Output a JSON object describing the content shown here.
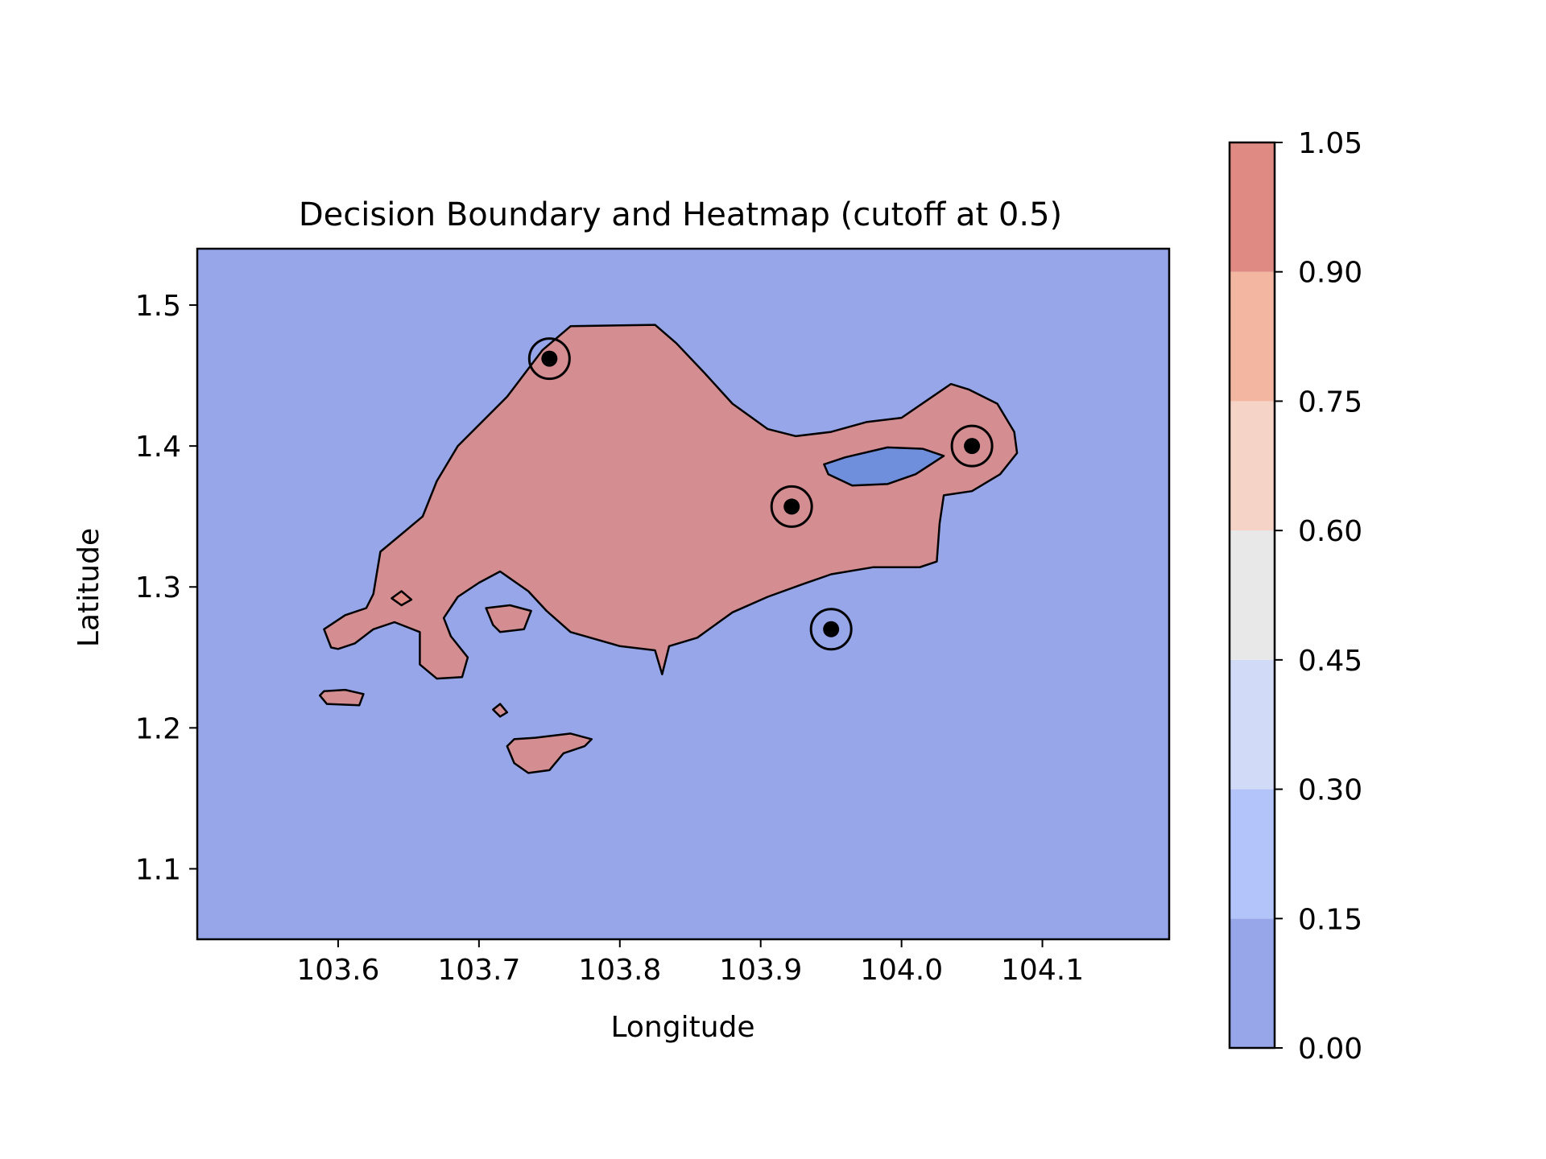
{
  "chart_data": {
    "type": "heatmap",
    "title": "Decision Boundary and Heatmap (cutoff at 0.5)",
    "xlabel": "Longitude",
    "ylabel": "Latitude",
    "xlim": [
      103.5,
      104.19
    ],
    "ylim": [
      1.05,
      1.54
    ],
    "xticks": [
      103.6,
      103.7,
      103.8,
      103.9,
      104.0,
      104.1
    ],
    "xtick_labels": [
      "103.6",
      "103.7",
      "103.8",
      "103.9",
      "104.0",
      "104.1"
    ],
    "yticks": [
      1.1,
      1.2,
      1.3,
      1.4,
      1.5
    ],
    "ytick_labels": [
      "1.1",
      "1.2",
      "1.3",
      "1.4",
      "1.5"
    ],
    "decision_cutoff": 0.5,
    "colormap": "coolwarm",
    "background_level": 0.0,
    "colorbar": {
      "levels": [
        0.0,
        0.15,
        0.3,
        0.45,
        0.6,
        0.75,
        0.9,
        1.05
      ],
      "tick_labels": [
        "0.00",
        "0.15",
        "0.30",
        "0.45",
        "0.60",
        "0.75",
        "0.90",
        "1.05"
      ],
      "colors": [
        "#96a6e8",
        "#b2c4fa",
        "#d1dbf8",
        "#e8e8e8",
        "#f5d3c6",
        "#f2b6a1",
        "#df8a83"
      ]
    },
    "points": [
      {
        "x": 103.75,
        "y": 1.462
      },
      {
        "x": 103.922,
        "y": 1.357
      },
      {
        "x": 104.05,
        "y": 1.4
      },
      {
        "x": 103.95,
        "y": 1.27
      }
    ],
    "regions": [
      {
        "level": 0.97,
        "boundary": [
          [
            103.595,
            1.257
          ],
          [
            103.59,
            1.27
          ],
          [
            103.605,
            1.28
          ],
          [
            103.62,
            1.285
          ],
          [
            103.625,
            1.295
          ],
          [
            103.63,
            1.325
          ],
          [
            103.66,
            1.35
          ],
          [
            103.67,
            1.375
          ],
          [
            103.685,
            1.4
          ],
          [
            103.72,
            1.435
          ],
          [
            103.745,
            1.468
          ],
          [
            103.765,
            1.485
          ],
          [
            103.825,
            1.486
          ],
          [
            103.84,
            1.473
          ],
          [
            103.86,
            1.452
          ],
          [
            103.88,
            1.43
          ],
          [
            103.905,
            1.412
          ],
          [
            103.925,
            1.407
          ],
          [
            103.95,
            1.41
          ],
          [
            103.975,
            1.417
          ],
          [
            104.0,
            1.42
          ],
          [
            104.035,
            1.444
          ],
          [
            104.048,
            1.44
          ],
          [
            104.068,
            1.43
          ],
          [
            104.08,
            1.41
          ],
          [
            104.082,
            1.395
          ],
          [
            104.07,
            1.38
          ],
          [
            104.05,
            1.368
          ],
          [
            104.03,
            1.365
          ],
          [
            104.027,
            1.345
          ],
          [
            104.025,
            1.318
          ],
          [
            104.013,
            1.314
          ],
          [
            103.98,
            1.314
          ],
          [
            103.95,
            1.309
          ],
          [
            103.93,
            1.302
          ],
          [
            103.905,
            1.293
          ],
          [
            103.88,
            1.282
          ],
          [
            103.855,
            1.264
          ],
          [
            103.835,
            1.258
          ],
          [
            103.83,
            1.238
          ],
          [
            103.825,
            1.255
          ],
          [
            103.8,
            1.258
          ],
          [
            103.765,
            1.268
          ],
          [
            103.748,
            1.283
          ],
          [
            103.735,
            1.297
          ],
          [
            103.715,
            1.311
          ],
          [
            103.7,
            1.303
          ],
          [
            103.685,
            1.293
          ],
          [
            103.675,
            1.278
          ],
          [
            103.68,
            1.265
          ],
          [
            103.692,
            1.25
          ],
          [
            103.688,
            1.236
          ],
          [
            103.67,
            1.235
          ],
          [
            103.658,
            1.245
          ],
          [
            103.658,
            1.268
          ],
          [
            103.64,
            1.275
          ],
          [
            103.625,
            1.27
          ],
          [
            103.612,
            1.26
          ],
          [
            103.6,
            1.256
          ]
        ]
      },
      {
        "level": 0.97,
        "boundary": [
          [
            103.71,
            1.273
          ],
          [
            103.705,
            1.285
          ],
          [
            103.722,
            1.287
          ],
          [
            103.737,
            1.283
          ],
          [
            103.732,
            1.27
          ],
          [
            103.715,
            1.268
          ]
        ]
      },
      {
        "level": 0.97,
        "boundary": [
          [
            103.587,
            1.223
          ],
          [
            103.592,
            1.217
          ],
          [
            103.615,
            1.216
          ],
          [
            103.618,
            1.224
          ],
          [
            103.605,
            1.227
          ],
          [
            103.59,
            1.226
          ]
        ]
      },
      {
        "level": 0.97,
        "boundary": [
          [
            103.72,
            1.187
          ],
          [
            103.725,
            1.175
          ],
          [
            103.735,
            1.168
          ],
          [
            103.75,
            1.17
          ],
          [
            103.76,
            1.182
          ],
          [
            103.775,
            1.187
          ],
          [
            103.78,
            1.192
          ],
          [
            103.765,
            1.196
          ],
          [
            103.74,
            1.193
          ],
          [
            103.725,
            1.192
          ]
        ]
      },
      {
        "level": 0.97,
        "boundary": [
          [
            103.71,
            1.213
          ],
          [
            103.715,
            1.208
          ],
          [
            103.72,
            1.211
          ],
          [
            103.715,
            1.217
          ]
        ]
      },
      {
        "level": 0.97,
        "boundary": [
          [
            103.638,
            1.292
          ],
          [
            103.645,
            1.297
          ],
          [
            103.652,
            1.291
          ],
          [
            103.645,
            1.287
          ]
        ]
      }
    ],
    "holes": [
      {
        "level": 0.1,
        "boundary": [
          [
            103.945,
            1.387
          ],
          [
            103.96,
            1.392
          ],
          [
            103.99,
            1.399
          ],
          [
            104.015,
            1.398
          ],
          [
            104.03,
            1.393
          ],
          [
            104.01,
            1.38
          ],
          [
            103.99,
            1.373
          ],
          [
            103.965,
            1.372
          ],
          [
            103.948,
            1.38
          ]
        ]
      }
    ]
  }
}
